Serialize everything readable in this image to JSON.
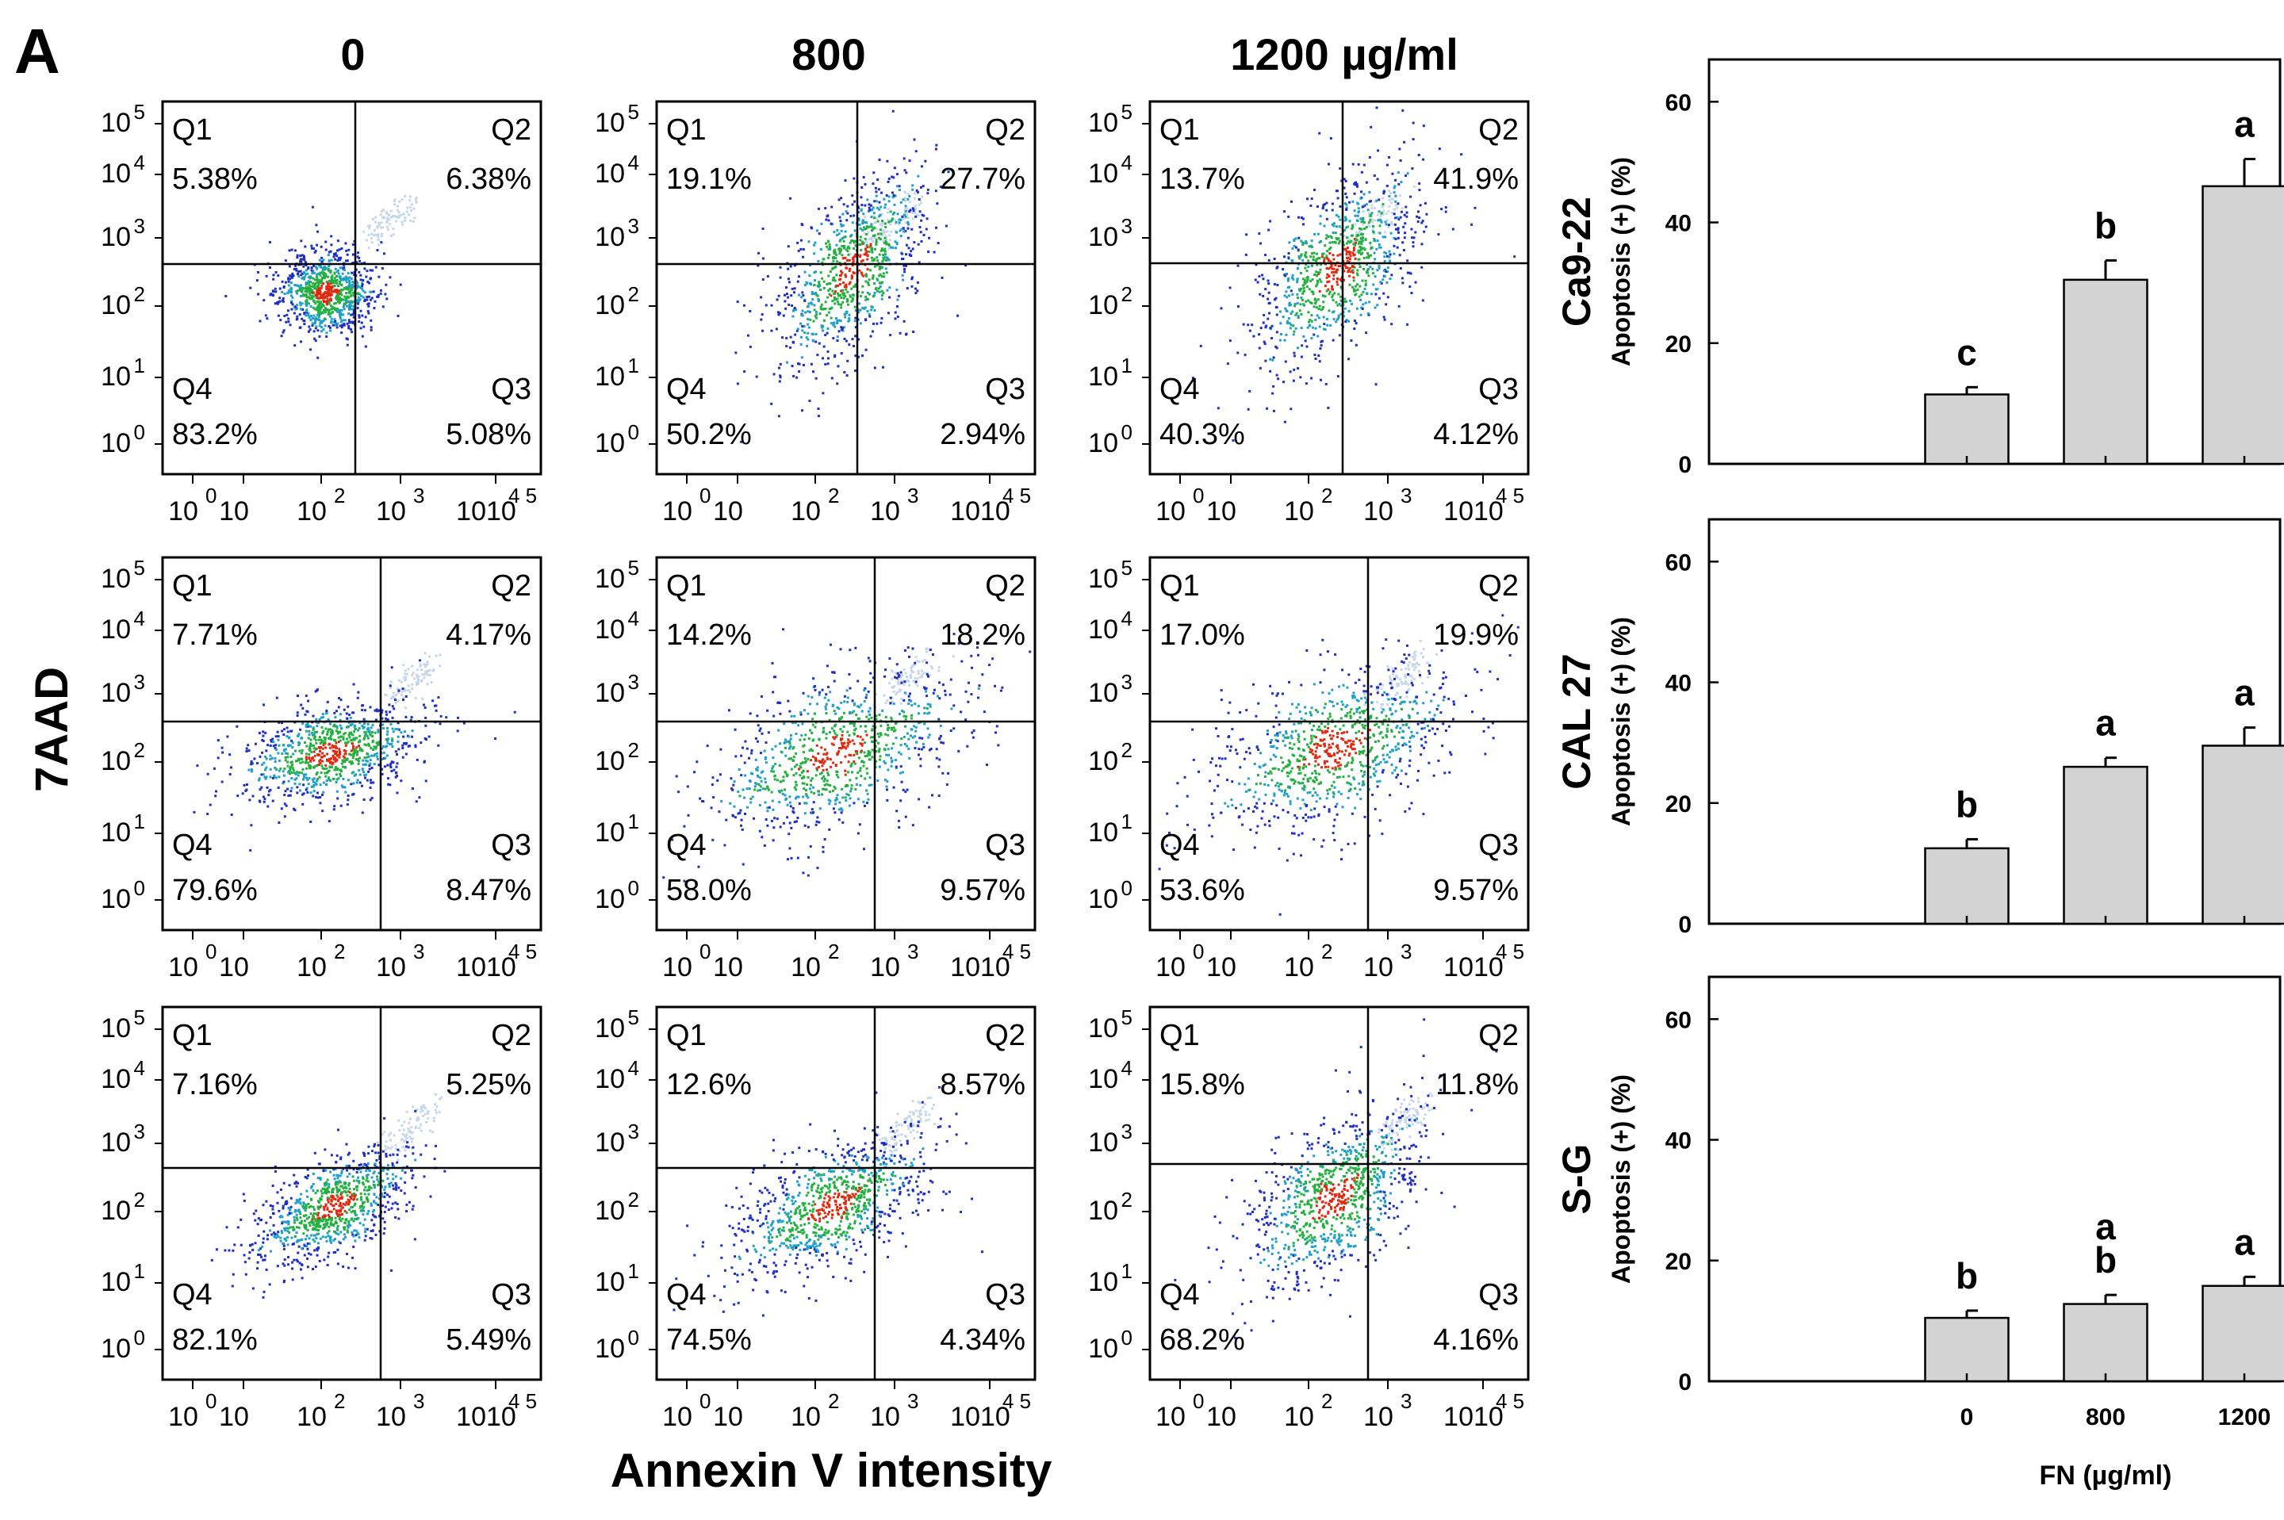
{
  "panel_label": "A",
  "x_axis_label": "Annexin V intensity",
  "y_axis_label": "7AAD",
  "dose_headers": [
    "0",
    "800",
    "1200 µg/ml"
  ],
  "quadrant_names": [
    "Q1",
    "Q2",
    "Q3",
    "Q4"
  ],
  "flow_tick_labels": {
    "y": [
      {
        "base": "10",
        "exp": "5"
      },
      {
        "base": "10",
        "exp": "4"
      },
      {
        "base": "10",
        "exp": "3"
      },
      {
        "base": "10",
        "exp": "2"
      },
      {
        "base": "10",
        "exp": "1"
      },
      {
        "base": "10",
        "exp": "0"
      }
    ],
    "x": [
      {
        "base": "10",
        "exp": "0"
      },
      {
        "base": "10",
        "exp": ""
      },
      {
        "base": "10",
        "exp": "2"
      },
      {
        "base": "10",
        "exp": "3"
      },
      {
        "base": "1010",
        "exp": "4 5"
      }
    ]
  },
  "flow_panels": [
    [
      {
        "q1": "5.38%",
        "q2": "6.38%",
        "q3": "5.08%",
        "q4": "83.2%"
      },
      {
        "q1": "19.1%",
        "q2": "27.7%",
        "q3": "2.94%",
        "q4": "50.2%"
      },
      {
        "q1": "13.7%",
        "q2": "41.9%",
        "q3": "4.12%",
        "q4": "40.3%"
      }
    ],
    [
      {
        "q1": "7.71%",
        "q2": "4.17%",
        "q3": "8.47%",
        "q4": "79.6%"
      },
      {
        "q1": "14.2%",
        "q2": "18.2%",
        "q3": "9.57%",
        "q4": "58.0%"
      },
      {
        "q1": "17.0%",
        "q2": "19.9%",
        "q3": "9.57%",
        "q4": "53.6%"
      }
    ],
    [
      {
        "q1": "7.16%",
        "q2": "5.25%",
        "q3": "5.49%",
        "q4": "82.1%"
      },
      {
        "q1": "12.6%",
        "q2": "8.57%",
        "q3": "4.34%",
        "q4": "74.5%"
      },
      {
        "q1": "15.8%",
        "q2": "11.8%",
        "q3": "4.16%",
        "q4": "68.2%"
      }
    ]
  ],
  "chart_data": [
    {
      "type": "bar",
      "cell_line": "Ca9-22",
      "categories": [
        "0",
        "800",
        "1200"
      ],
      "values": [
        11.5,
        30.5,
        46
      ],
      "errors": [
        1.2,
        3.2,
        4.5
      ],
      "significance": [
        "c",
        "b",
        "a"
      ],
      "ylabel": "Apoptosis (+) (%)",
      "xlabel": "",
      "ylim": [
        0,
        67
      ],
      "yticks": [
        "0",
        "20",
        "40",
        "60"
      ],
      "show_x_ticklabels": false
    },
    {
      "type": "bar",
      "cell_line": "CAL 27",
      "categories": [
        "0",
        "800",
        "1200"
      ],
      "values": [
        12.5,
        26,
        29.5
      ],
      "errors": [
        1.5,
        1.5,
        3
      ],
      "significance": [
        "b",
        "a",
        "a"
      ],
      "ylabel": "Apoptosis (+) (%)",
      "xlabel": "",
      "ylim": [
        0,
        67
      ],
      "yticks": [
        "0",
        "20",
        "40",
        "60"
      ],
      "show_x_ticklabels": false
    },
    {
      "type": "bar",
      "cell_line": "S-G",
      "categories": [
        "0",
        "800",
        "1200"
      ],
      "values": [
        10.5,
        12.8,
        15.8
      ],
      "errors": [
        1.2,
        1.5,
        1.5
      ],
      "significance": [
        "b",
        "a\nb",
        "a"
      ],
      "ylabel": "Apoptosis (+) (%)",
      "xlabel": "FN (µg/ml)",
      "ylim": [
        0,
        67
      ],
      "yticks": [
        "0",
        "20",
        "40",
        "60"
      ],
      "show_x_ticklabels": true
    }
  ],
  "colors": {
    "bar_fill": "#d3d3d3",
    "stroke": "#000000",
    "scatter_low": "#1f2fbf",
    "scatter_mid": "#23b040",
    "scatter_high": "#e02a10",
    "scatter_pale": "#c7d7ea"
  }
}
